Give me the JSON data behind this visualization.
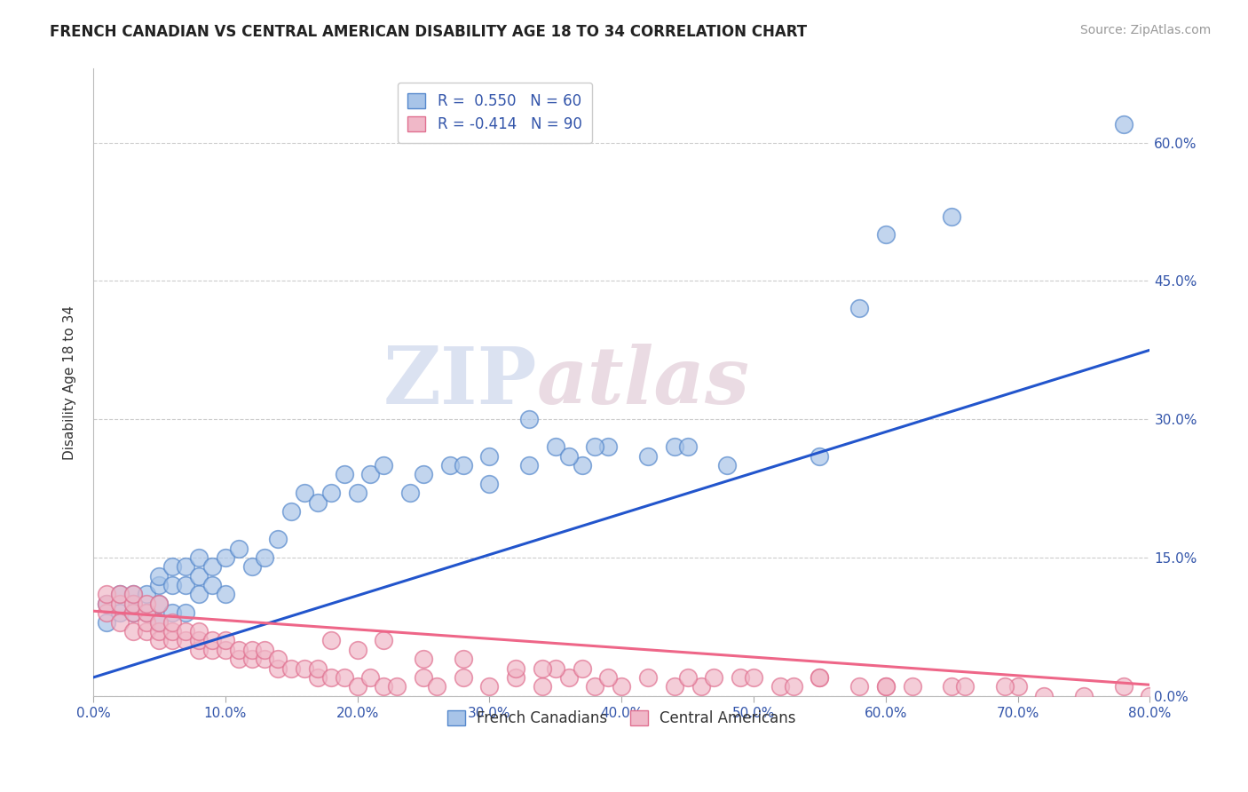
{
  "title": "FRENCH CANADIAN VS CENTRAL AMERICAN DISABILITY AGE 18 TO 34 CORRELATION CHART",
  "source": "Source: ZipAtlas.com",
  "ylabel": "Disability Age 18 to 34",
  "blue_R": 0.55,
  "blue_N": 60,
  "pink_R": -0.414,
  "pink_N": 90,
  "blue_color": "#a8c4e8",
  "pink_color": "#f0b8c8",
  "blue_edge_color": "#5588cc",
  "pink_edge_color": "#e07090",
  "blue_line_color": "#2255cc",
  "pink_line_color": "#ee6688",
  "watermark_zip": "ZIP",
  "watermark_atlas": "atlas",
  "xlim": [
    0.0,
    0.8
  ],
  "ylim": [
    0.0,
    0.68
  ],
  "yticks": [
    0.0,
    0.15,
    0.3,
    0.45,
    0.6
  ],
  "xticks": [
    0.0,
    0.1,
    0.2,
    0.3,
    0.4,
    0.5,
    0.6,
    0.7,
    0.8
  ],
  "blue_trend_x": [
    0.0,
    0.8
  ],
  "blue_trend_y": [
    0.02,
    0.375
  ],
  "pink_trend_x": [
    0.0,
    0.8
  ],
  "pink_trend_y": [
    0.092,
    0.012
  ],
  "blue_scatter_x": [
    0.01,
    0.01,
    0.02,
    0.02,
    0.03,
    0.03,
    0.03,
    0.04,
    0.04,
    0.05,
    0.05,
    0.05,
    0.05,
    0.06,
    0.06,
    0.06,
    0.07,
    0.07,
    0.07,
    0.08,
    0.08,
    0.08,
    0.09,
    0.09,
    0.1,
    0.1,
    0.11,
    0.12,
    0.13,
    0.14,
    0.15,
    0.16,
    0.17,
    0.18,
    0.19,
    0.2,
    0.21,
    0.22,
    0.24,
    0.25,
    0.27,
    0.3,
    0.33,
    0.35,
    0.37,
    0.39,
    0.36,
    0.38,
    0.42,
    0.44,
    0.28,
    0.3,
    0.45,
    0.48,
    0.33,
    0.55,
    0.58,
    0.6,
    0.65,
    0.78
  ],
  "blue_scatter_y": [
    0.08,
    0.1,
    0.09,
    0.11,
    0.09,
    0.11,
    0.1,
    0.09,
    0.11,
    0.1,
    0.12,
    0.13,
    0.08,
    0.09,
    0.12,
    0.14,
    0.09,
    0.12,
    0.14,
    0.11,
    0.13,
    0.15,
    0.12,
    0.14,
    0.11,
    0.15,
    0.16,
    0.14,
    0.15,
    0.17,
    0.2,
    0.22,
    0.21,
    0.22,
    0.24,
    0.22,
    0.24,
    0.25,
    0.22,
    0.24,
    0.25,
    0.23,
    0.25,
    0.27,
    0.25,
    0.27,
    0.26,
    0.27,
    0.26,
    0.27,
    0.25,
    0.26,
    0.27,
    0.25,
    0.3,
    0.26,
    0.42,
    0.5,
    0.52,
    0.62
  ],
  "pink_scatter_x": [
    0.01,
    0.01,
    0.01,
    0.02,
    0.02,
    0.02,
    0.03,
    0.03,
    0.03,
    0.03,
    0.04,
    0.04,
    0.04,
    0.04,
    0.05,
    0.05,
    0.05,
    0.05,
    0.06,
    0.06,
    0.06,
    0.07,
    0.07,
    0.08,
    0.08,
    0.08,
    0.09,
    0.09,
    0.1,
    0.1,
    0.11,
    0.11,
    0.12,
    0.12,
    0.13,
    0.13,
    0.14,
    0.14,
    0.15,
    0.16,
    0.17,
    0.17,
    0.18,
    0.19,
    0.2,
    0.21,
    0.22,
    0.23,
    0.25,
    0.26,
    0.28,
    0.3,
    0.32,
    0.34,
    0.36,
    0.38,
    0.4,
    0.42,
    0.44,
    0.46,
    0.49,
    0.52,
    0.55,
    0.58,
    0.62,
    0.35,
    0.37,
    0.39,
    0.25,
    0.28,
    0.45,
    0.47,
    0.6,
    0.65,
    0.7,
    0.75,
    0.78,
    0.8,
    0.5,
    0.53,
    0.55,
    0.6,
    0.66,
    0.69,
    0.72,
    0.32,
    0.34,
    0.18,
    0.2,
    0.22
  ],
  "pink_scatter_y": [
    0.09,
    0.1,
    0.11,
    0.08,
    0.1,
    0.11,
    0.07,
    0.09,
    0.1,
    0.11,
    0.07,
    0.08,
    0.09,
    0.1,
    0.06,
    0.07,
    0.08,
    0.1,
    0.06,
    0.07,
    0.08,
    0.06,
    0.07,
    0.05,
    0.06,
    0.07,
    0.05,
    0.06,
    0.05,
    0.06,
    0.04,
    0.05,
    0.04,
    0.05,
    0.04,
    0.05,
    0.03,
    0.04,
    0.03,
    0.03,
    0.02,
    0.03,
    0.02,
    0.02,
    0.01,
    0.02,
    0.01,
    0.01,
    0.02,
    0.01,
    0.02,
    0.01,
    0.02,
    0.01,
    0.02,
    0.01,
    0.01,
    0.02,
    0.01,
    0.01,
    0.02,
    0.01,
    0.02,
    0.01,
    0.01,
    0.03,
    0.03,
    0.02,
    0.04,
    0.04,
    0.02,
    0.02,
    0.01,
    0.01,
    0.01,
    0.0,
    0.01,
    0.0,
    0.02,
    0.01,
    0.02,
    0.01,
    0.01,
    0.01,
    0.0,
    0.03,
    0.03,
    0.06,
    0.05,
    0.06
  ]
}
